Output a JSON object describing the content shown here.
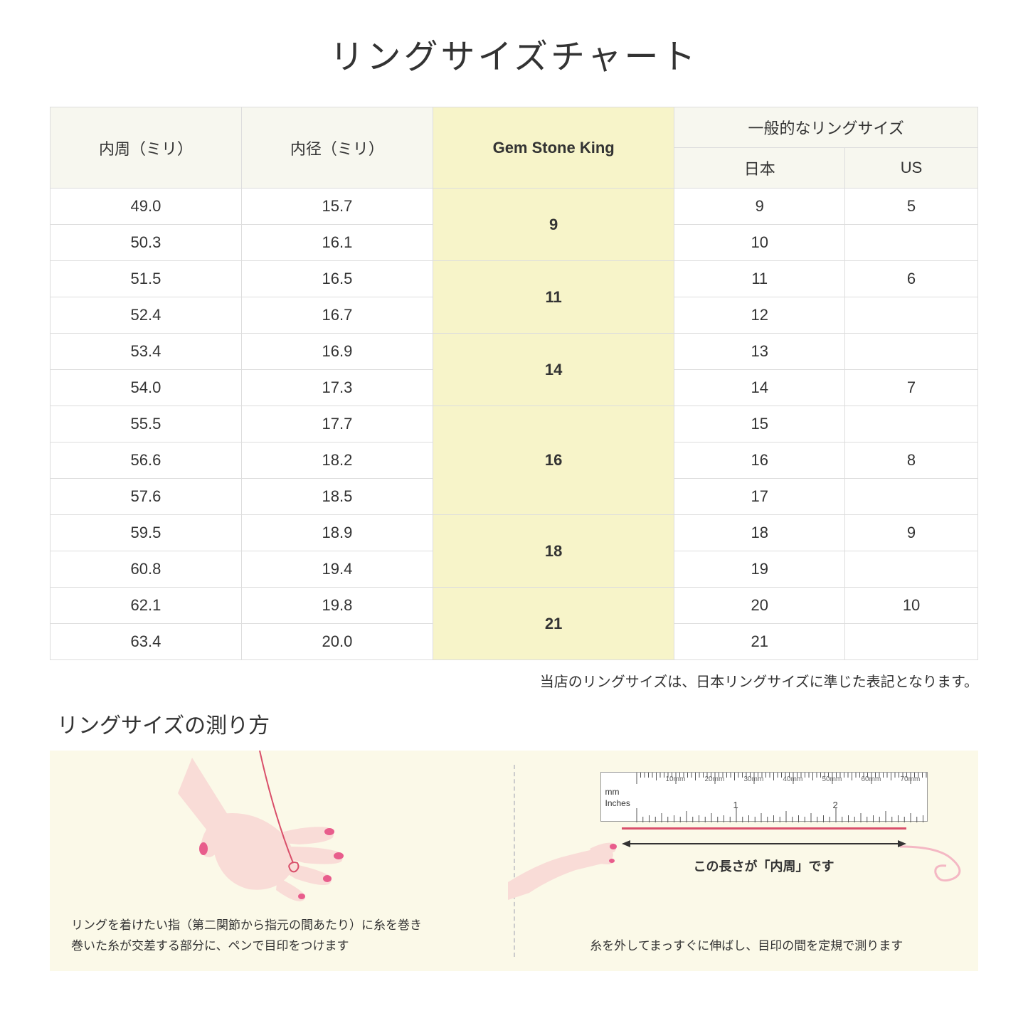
{
  "title": "リングサイズチャート",
  "table": {
    "headers": {
      "circumference": "内周（ミリ）",
      "diameter": "内径（ミリ）",
      "gsk": "Gem Stone King",
      "general": "一般的なリングサイズ",
      "japan": "日本",
      "us": "US"
    },
    "groups": [
      {
        "gsk": "9",
        "rows": [
          {
            "circ": "49.0",
            "diam": "15.7",
            "jp": "9",
            "us": "5"
          },
          {
            "circ": "50.3",
            "diam": "16.1",
            "jp": "10",
            "us": ""
          }
        ]
      },
      {
        "gsk": "11",
        "rows": [
          {
            "circ": "51.5",
            "diam": "16.5",
            "jp": "11",
            "us": "6"
          },
          {
            "circ": "52.4",
            "diam": "16.7",
            "jp": "12",
            "us": ""
          }
        ]
      },
      {
        "gsk": "14",
        "rows": [
          {
            "circ": "53.4",
            "diam": "16.9",
            "jp": "13",
            "us": ""
          },
          {
            "circ": "54.0",
            "diam": "17.3",
            "jp": "14",
            "us": "7"
          }
        ]
      },
      {
        "gsk": "16",
        "rows": [
          {
            "circ": "55.5",
            "diam": "17.7",
            "jp": "15",
            "us": ""
          },
          {
            "circ": "56.6",
            "diam": "18.2",
            "jp": "16",
            "us": "8"
          },
          {
            "circ": "57.6",
            "diam": "18.5",
            "jp": "17",
            "us": ""
          }
        ]
      },
      {
        "gsk": "18",
        "rows": [
          {
            "circ": "59.5",
            "diam": "18.9",
            "jp": "18",
            "us": "9"
          },
          {
            "circ": "60.8",
            "diam": "19.4",
            "jp": "19",
            "us": ""
          }
        ]
      },
      {
        "gsk": "21",
        "rows": [
          {
            "circ": "62.1",
            "diam": "19.8",
            "jp": "20",
            "us": "10"
          },
          {
            "circ": "63.4",
            "diam": "20.0",
            "jp": "21",
            "us": ""
          }
        ]
      }
    ]
  },
  "note": "当店のリングサイズは、日本リングサイズに準じた表記となります。",
  "howto": {
    "title": "リングサイズの測り方",
    "left_text": "リングを着けたい指（第二関節から指元の間あたり）に糸を巻き\n巻いた糸が交差する部分に、ペンで目印をつけます",
    "right_text": "糸を外してまっすぐに伸ばし、目印の間を定規で測ります",
    "length_label": "この長さが「内周」です",
    "ruler": {
      "mm_label": "mm",
      "in_label": "Inches",
      "mm_marks": [
        "10mm",
        "20mm",
        "30mm",
        "40mm",
        "50mm",
        "60mm",
        "70mm"
      ],
      "in_marks": [
        "1",
        "2"
      ]
    }
  },
  "colors": {
    "header_bg": "#f7f7ef",
    "highlight_bg": "#f7f4c9",
    "border": "#dddddd",
    "howto_bg": "#fbf9e8",
    "hand_fill": "#f9dcd7",
    "nail_fill": "#e85d8c",
    "thread": "#d94f6a"
  }
}
